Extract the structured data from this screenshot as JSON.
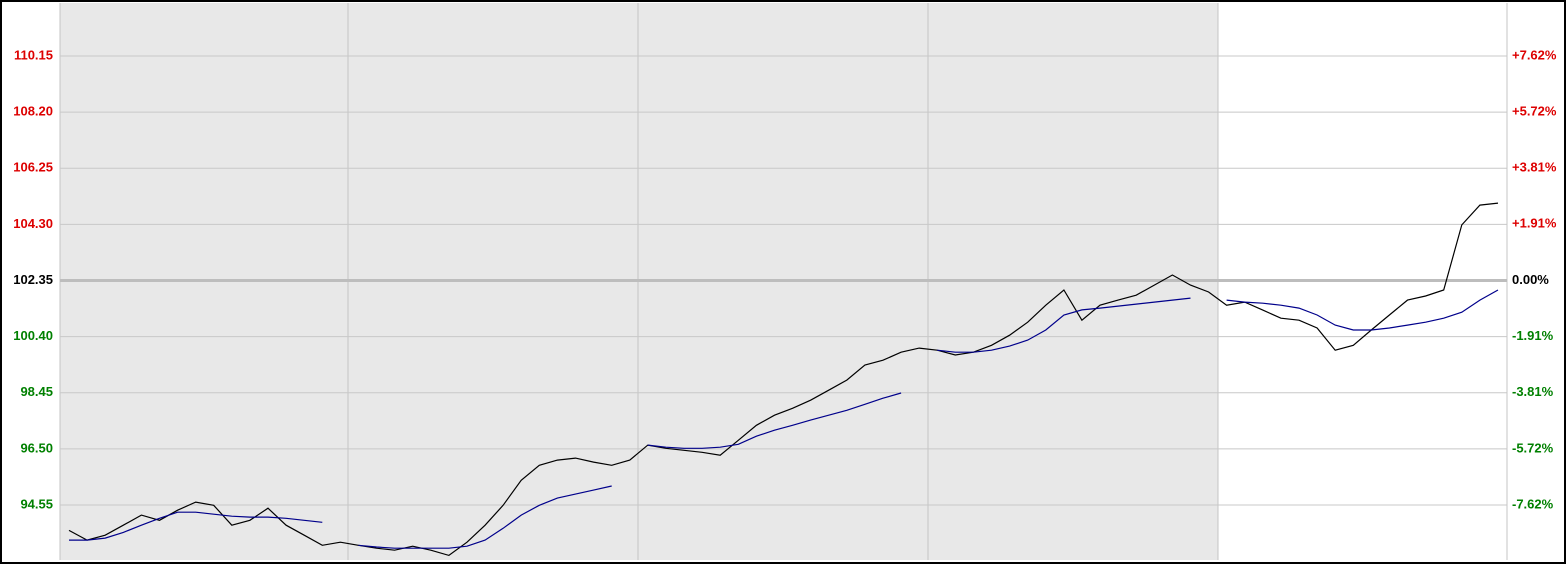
{
  "chart_data": {
    "type": "line",
    "categories": [
      null,
      null,
      null,
      null,
      null,
      null,
      null,
      null,
      null,
      null,
      null,
      null,
      null,
      null,
      null,
      null,
      null,
      null,
      null,
      null,
      null,
      null,
      null,
      null,
      null,
      null,
      null,
      null,
      null,
      null,
      null,
      null,
      null,
      null,
      null,
      null,
      null,
      null,
      null,
      null,
      null,
      null,
      null,
      null,
      null,
      null,
      null,
      null,
      null,
      null,
      null,
      null,
      null,
      null,
      null,
      null,
      null,
      null,
      null,
      null,
      null,
      null,
      null,
      null,
      null,
      null,
      null,
      null,
      null,
      null,
      null,
      null,
      null,
      null,
      null,
      null,
      null,
      null,
      null,
      null
    ],
    "series": [
      {
        "color": "#000000",
        "values": [
          93.67,
          93.33,
          93.5,
          93.85,
          94.2,
          94.02,
          94.37,
          94.65,
          94.54,
          93.85,
          94.02,
          94.44,
          93.85,
          93.5,
          93.15,
          93.26,
          93.15,
          93.05,
          92.98,
          93.12,
          92.98,
          92.8,
          93.26,
          93.85,
          94.54,
          95.41,
          95.93,
          96.11,
          96.18,
          96.04,
          95.93,
          96.11,
          96.63,
          96.52,
          96.45,
          96.38,
          96.28,
          96.8,
          97.32,
          97.67,
          97.91,
          98.19,
          98.54,
          98.89,
          99.41,
          99.58,
          99.86,
          100.0,
          99.93,
          99.76,
          99.86,
          100.1,
          100.45,
          100.9,
          101.49,
          102.02,
          100.97,
          101.49,
          101.67,
          101.84,
          102.19,
          102.54,
          102.19,
          101.95,
          101.49,
          101.6,
          101.32,
          101.04,
          100.97,
          100.7,
          99.93,
          100.1,
          100.63,
          101.15,
          101.67,
          101.81,
          102.02,
          104.28,
          104.97,
          105.04
        ]
      },
      {
        "color": "#00008b",
        "values": [
          93.33,
          93.33,
          93.4,
          93.6,
          93.85,
          94.09,
          94.3,
          94.3,
          94.23,
          94.16,
          94.13,
          94.13,
          94.09,
          94.02,
          93.95,
          null,
          93.15,
          93.09,
          93.05,
          93.05,
          93.05,
          93.05,
          93.12,
          93.33,
          93.74,
          94.2,
          94.54,
          94.79,
          94.93,
          95.07,
          95.21,
          null,
          96.63,
          96.56,
          96.52,
          96.52,
          96.56,
          96.66,
          96.94,
          97.15,
          97.32,
          97.5,
          97.67,
          97.84,
          98.05,
          98.26,
          98.44,
          null,
          99.93,
          99.86,
          99.86,
          99.93,
          100.07,
          100.28,
          100.63,
          101.15,
          101.33,
          101.39,
          101.46,
          101.53,
          101.6,
          101.67,
          101.74,
          null,
          101.67,
          101.6,
          101.56,
          101.49,
          101.39,
          101.15,
          100.8,
          100.63,
          100.63,
          100.7,
          100.8,
          100.9,
          101.04,
          101.25,
          101.67,
          102.02
        ]
      }
    ],
    "ylim": [
      92.64,
      111.99
    ],
    "yticks": [
      110.15,
      {
        "value": 108.2,
        "label": "108.20"
      },
      106.25,
      {
        "value": 104.3,
        "label": "104.30"
      },
      102.35,
      {
        "value": 100.4,
        "label": "100.40"
      },
      98.45,
      {
        "value": 96.5,
        "label": "96.50"
      },
      94.55
    ],
    "y2lim": [
      -9.49,
      9.42
    ],
    "y2ticks": [
      {
        "value": 7.62,
        "label": "+7.62%"
      },
      {
        "value": 5.72,
        "label": "+5.72%"
      },
      {
        "value": 3.81,
        "label": "+3.81%"
      },
      {
        "value": 1.91,
        "label": "+1.91%"
      },
      {
        "value": 0,
        "label": "0.00%"
      },
      {
        "value": -1.91,
        "label": "-1.91%"
      },
      {
        "value": -3.81,
        "label": "-3.81%"
      },
      {
        "value": -5.72,
        "label": "-5.72%"
      },
      {
        "value": -7.62,
        "label": "-7.62%"
      }
    ],
    "baseline": 102.35,
    "tick_colors": {
      "up": "#dd0000",
      "flat": "#000000",
      "down": "#008000"
    },
    "grid": true
  }
}
